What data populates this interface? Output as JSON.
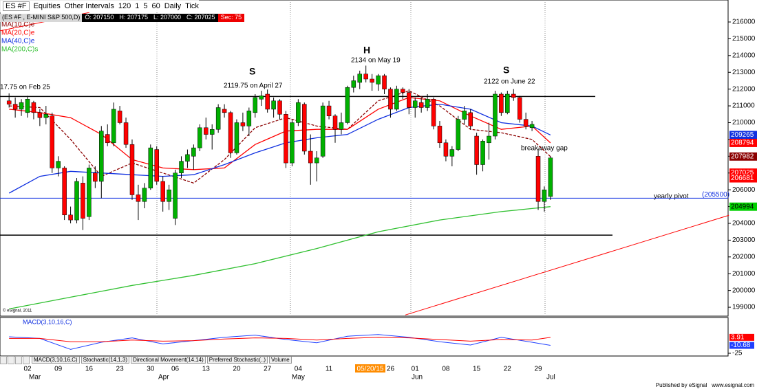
{
  "toolbar": {
    "symbol": "ES #F",
    "items": [
      "Equities",
      "Other Intervals",
      "120",
      "1",
      "5",
      "60",
      "Daily",
      "Tick"
    ]
  },
  "header": {
    "symbol": "(ES #F , E-MINI S&P 500,D)",
    "quote": [
      "O: 207150",
      "H: 207175",
      "L: 207000",
      "C: 207025"
    ],
    "sec": "Sec: 75"
  },
  "chart_data": {
    "type": "candlestick",
    "categories": [
      null,
      null,
      null,
      "02",
      null,
      null,
      null,
      null,
      "09",
      null,
      null,
      null,
      null,
      "16",
      null,
      null,
      null,
      null,
      "23",
      null,
      null,
      null,
      null,
      "30",
      null,
      null,
      null,
      "06",
      null,
      null,
      null,
      null,
      "13",
      null,
      null,
      null,
      null,
      "20",
      null,
      null,
      null,
      null,
      "27",
      null,
      null,
      null,
      null,
      "04",
      null,
      null,
      null,
      null,
      "11",
      null,
      null,
      null,
      null,
      null,
      null,
      null,
      null,
      null,
      "26",
      null,
      null,
      null,
      "01",
      null,
      null,
      null,
      null,
      "08",
      null,
      null,
      null,
      null,
      "15",
      null,
      null,
      null,
      null,
      "22",
      null,
      null,
      null,
      null,
      "29",
      null,
      null
    ],
    "months": [
      "Mar",
      "Apr",
      "May",
      "Jun",
      "Jul"
    ],
    "cursor_date": "05/20/15",
    "up_color": "#00b000",
    "down_color": "#ff0000",
    "open": [
      211300,
      211100,
      210800,
      210600,
      211200,
      210600,
      210300,
      210400,
      207300,
      207300,
      204500,
      204200,
      206400,
      204400,
      207000,
      206500,
      209300,
      208800,
      210700,
      210000,
      208700,
      205700,
      205300,
      206100,
      208400,
      206500,
      205300,
      204300,
      207000,
      207700,
      208000,
      208500,
      209700,
      209300,
      209600,
      210800,
      210600,
      208200,
      210000,
      209800,
      210600,
      211400,
      211700,
      210800,
      211300,
      210500,
      207600,
      210000,
      211100,
      208300,
      207600,
      208000,
      211000,
      210400,
      209600,
      210000,
      212100,
      212400,
      212900,
      212600,
      212300,
      212800,
      212000,
      210800,
      212000,
      211800,
      210900,
      211200,
      210900,
      211400,
      209800,
      208800,
      208000,
      208400,
      210200,
      210600,
      209200,
      207500,
      208800,
      209200,
      211700,
      210600,
      211700,
      211500,
      210200,
      209700,
      208000,
      205300,
      205600
    ],
    "high": [
      211750,
      211500,
      211400,
      211600,
      211300,
      210800,
      211000,
      210600,
      208000,
      207400,
      205000,
      206700,
      206800,
      207500,
      207400,
      209800,
      209900,
      211200,
      211000,
      210300,
      209000,
      206300,
      206400,
      208700,
      208600,
      206800,
      206300,
      207200,
      208000,
      208400,
      208700,
      209900,
      210300,
      209900,
      211100,
      211100,
      210700,
      210200,
      210600,
      210900,
      211700,
      211900,
      211975,
      211500,
      211400,
      210700,
      210200,
      211400,
      211200,
      209300,
      208300,
      211200,
      211300,
      210500,
      210600,
      212200,
      212800,
      213100,
      213400,
      212900,
      212900,
      212900,
      212100,
      212200,
      212100,
      212000,
      211500,
      211500,
      211700,
      211500,
      210100,
      209000,
      208600,
      210400,
      211000,
      210800,
      209400,
      209000,
      210000,
      211900,
      211800,
      211900,
      212000,
      211600,
      210600,
      210100,
      208400,
      206200,
      208000
    ],
    "low": [
      210900,
      210300,
      210400,
      210300,
      210200,
      209800,
      209900,
      207000,
      206800,
      204200,
      204000,
      204000,
      203600,
      204200,
      206100,
      205500,
      208600,
      208600,
      209900,
      208500,
      205400,
      204200,
      204900,
      206000,
      206300,
      204700,
      204800,
      203900,
      206700,
      207300,
      207200,
      208300,
      209000,
      208400,
      209400,
      210300,
      207900,
      208100,
      209500,
      209200,
      210300,
      211000,
      210600,
      210300,
      210200,
      207300,
      207400,
      209800,
      208100,
      206300,
      206500,
      207900,
      210200,
      208800,
      209300,
      209900,
      211800,
      212000,
      212400,
      211900,
      211900,
      211700,
      210300,
      210700,
      211400,
      210500,
      210300,
      210600,
      210700,
      209600,
      208500,
      207700,
      207400,
      208300,
      209900,
      209600,
      206900,
      207100,
      207800,
      209000,
      210400,
      210500,
      211300,
      210000,
      209600,
      209500,
      204800,
      204700,
      205400
    ],
    "close": [
      211100,
      210800,
      211200,
      211400,
      210600,
      210300,
      210500,
      207300,
      207700,
      204500,
      204200,
      206500,
      204300,
      207300,
      206500,
      209500,
      208800,
      210800,
      210000,
      208700,
      205700,
      205300,
      206100,
      208500,
      206500,
      205300,
      206000,
      207000,
      207700,
      208100,
      208500,
      209700,
      209300,
      209600,
      210900,
      210600,
      208200,
      210000,
      209800,
      210700,
      211500,
      211600,
      210800,
      211300,
      210500,
      207600,
      210000,
      211200,
      208300,
      207600,
      207900,
      211000,
      210400,
      209600,
      210000,
      212100,
      212500,
      212900,
      212600,
      212400,
      212800,
      212000,
      210800,
      212000,
      211800,
      210900,
      211300,
      210900,
      211400,
      209800,
      208800,
      208000,
      208400,
      210200,
      210700,
      209800,
      207500,
      208900,
      209200,
      211700,
      210600,
      211700,
      211500,
      210200,
      209800,
      209900,
      205300,
      206000,
      207900
    ],
    "series": [
      {
        "name": "MA(10,C)e",
        "color": "#8b0000",
        "dash": true,
        "x": [
          0,
          5,
          10,
          15,
          20,
          25,
          30,
          35,
          40,
          45,
          50,
          55,
          60,
          65,
          70,
          75,
          80,
          85,
          88
        ],
        "values": [
          211000,
          210900,
          209000,
          206800,
          207600,
          207000,
          206400,
          207800,
          209700,
          210300,
          209800,
          209600,
          211300,
          211900,
          211000,
          209600,
          209400,
          209000,
          207982
        ]
      },
      {
        "name": "MA(20,C)e",
        "color": "#ff0000",
        "dash": false,
        "x": [
          0,
          5,
          10,
          15,
          20,
          25,
          30,
          35,
          40,
          45,
          50,
          55,
          60,
          65,
          70,
          75,
          80,
          85,
          88
        ],
        "values": [
          210800,
          210600,
          210300,
          209300,
          207800,
          207300,
          207200,
          207300,
          208700,
          209500,
          209600,
          209600,
          210800,
          211500,
          211300,
          210400,
          209600,
          209800,
          208794
        ]
      },
      {
        "name": "MA(40,C)e",
        "color": "#1030e0",
        "dash": false,
        "x": [
          0,
          5,
          10,
          15,
          20,
          25,
          30,
          35,
          40,
          45,
          50,
          55,
          60,
          65,
          70,
          75,
          80,
          85,
          88
        ],
        "values": [
          205800,
          206800,
          207100,
          207000,
          206900,
          206800,
          206900,
          207500,
          208200,
          208800,
          209100,
          209300,
          210200,
          210900,
          211100,
          210800,
          210000,
          209800,
          209265
        ]
      },
      {
        "name": "MA(200,C)s",
        "color": "#30c030",
        "dash": false,
        "x": [
          0,
          10,
          20,
          30,
          40,
          50,
          60,
          70,
          80,
          88
        ],
        "values": [
          198900,
          199600,
          200300,
          200900,
          201600,
          202500,
          203500,
          204200,
          204700,
          204994
        ]
      }
    ],
    "price_labels": [
      {
        "value": 209265,
        "color": "#1030e0"
      },
      {
        "value": 208794,
        "color": "#ff0000"
      },
      {
        "value": 207982,
        "color": "#8b0000"
      },
      {
        "value": 207025,
        "color": "#ff0000"
      },
      {
        "value": 206681,
        "color": "#ff0000"
      },
      {
        "value": 204994,
        "color": "#00d000"
      }
    ],
    "levels": [
      {
        "value": 211560,
        "color": "#000000"
      },
      {
        "value": 203300,
        "color": "#000000"
      },
      {
        "value": {
          "value": 205500,
          "label": "(205500)"
        },
        "color": "#1030e0"
      }
    ],
    "trendlines": [
      {
        "x": [
          64.4,
          117
        ],
        "y": [
          198540,
          204480
        ],
        "color": "#ff0000"
      },
      {
        "x": [
          -1.47,
          13.07
        ],
        "y": [
          215470,
          216570
        ],
        "color": "#ff0000"
      }
    ],
    "annotations": [
      "17.75 on Feb 25",
      "S",
      "2119.75 on April 27",
      "H",
      "2134 on May 19",
      "S",
      "2122 on June 22",
      "breakaway gap",
      "yearly pivot"
    ],
    "ylim": [
      198470,
      217310
    ],
    "yticks": [
      199000,
      200000,
      201000,
      202000,
      203000,
      204000,
      205000,
      206000,
      207000,
      208000,
      209000,
      210000,
      211000,
      212000,
      213000,
      214000,
      215000,
      216000
    ],
    "grid": false,
    "macd": {
      "name": "MACD(3,10,16,C)",
      "ylim": [
        -30,
        40
      ],
      "yticks": [
        -25
      ],
      "series": [
        {
          "color": "#2040ff",
          "x": [
            0,
            5,
            10,
            15,
            20,
            25,
            30,
            35,
            40,
            45,
            50,
            55,
            60,
            65,
            70,
            75,
            80,
            85,
            88
          ],
          "values": [
            5,
            2,
            -18,
            -5,
            3,
            -8,
            -2,
            4,
            8,
            0,
            -6,
            6,
            9,
            4,
            -4,
            -10,
            4,
            -5,
            -10.68
          ]
        },
        {
          "color": "#ff0000",
          "x": [
            0,
            5,
            10,
            15,
            20,
            25,
            30,
            35,
            40,
            45,
            50,
            55,
            60,
            65,
            70,
            75,
            80,
            85,
            88
          ],
          "values": [
            2,
            2,
            -4,
            -4,
            -1,
            -3,
            -2,
            1,
            3,
            2,
            -1,
            2,
            4,
            3,
            0,
            -3,
            0,
            -1,
            3.91
          ]
        }
      ],
      "value_labels": [
        {
          "value": 3.91,
          "color": "#ff0000"
        },
        {
          "value": -10.68,
          "color": "#2040ff"
        }
      ]
    }
  },
  "tabs": [
    "MACD(3,10,16,C)",
    "Stochastic(14,1,3)",
    "Directional Movement(14,14)",
    "Preferred Stochastic(..)",
    "Volume"
  ],
  "footer": {
    "copyright": "© eSignal, 2011",
    "publisher": "Published by eSignal   www.esignal.com"
  }
}
